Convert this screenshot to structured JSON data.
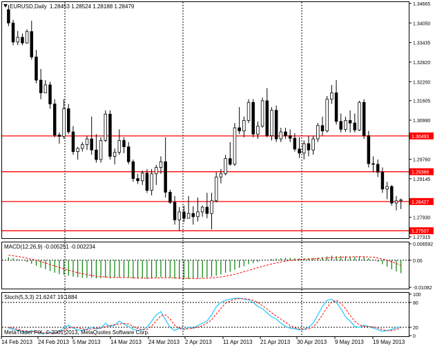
{
  "header": {
    "symbol": "EURUSD,Daily",
    "ohlc": "1.28453 1.28524 1.28188 1.28479"
  },
  "colors": {
    "background": "#ffffff",
    "frame": "#000000",
    "grid": "#000000",
    "level_line": "#ff0000",
    "level_label_bg": "#ff0000",
    "level_label_text": "#ffffff",
    "macd_hist": "#008000",
    "macd_signal": "#ff0000",
    "stoch_main": "#1ec8ff",
    "stoch_signal": "#ff0000"
  },
  "chart_data": [
    {
      "type": "candlestick",
      "title": "EURUSD,Daily",
      "x_tick_labels": [
        "14 Feb 2013",
        "24 Feb 2013",
        "5 Mar 2013",
        "14 Mar 2013",
        "24 Mar 2013",
        "2 Apr 2013",
        "11 Apr 2013",
        "21 Apr 2013",
        "30 Apr 2013",
        "9 May 2013",
        "19 May 2013"
      ],
      "y_tick_labels": [
        "1.34665",
        "1.34050",
        "1.33435",
        "1.32820",
        "1.32200",
        "1.31605",
        "1.30990",
        "1.30493",
        "1.29760",
        "1.29366",
        "1.29145",
        "1.28427",
        "1.27930",
        "1.27507",
        "1.27315"
      ],
      "ylim": [
        1.27315,
        1.34665
      ],
      "horizontal_levels": [
        "1.30493",
        "1.29366",
        "1.28427",
        "1.27507"
      ],
      "grid": "dotted",
      "candles": [
        [
          1.3447,
          1.3462,
          1.3395,
          1.3405
        ],
        [
          1.3405,
          1.3415,
          1.3335,
          1.3345
        ],
        [
          1.3345,
          1.338,
          1.3335,
          1.336
        ],
        [
          1.336,
          1.3372,
          1.3335,
          1.3342
        ],
        [
          1.3342,
          1.3385,
          1.334,
          1.3378
        ],
        [
          1.3378,
          1.3412,
          1.329,
          1.3298
        ],
        [
          1.3298,
          1.332,
          1.3215,
          1.3225
        ],
        [
          1.3225,
          1.326,
          1.3165,
          1.3185
        ],
        [
          1.3185,
          1.3225,
          1.319,
          1.321
        ],
        [
          1.321,
          1.322,
          1.3135,
          1.315
        ],
        [
          1.315,
          1.3165,
          1.3045,
          1.3052
        ],
        [
          1.3052,
          1.306,
          1.3025,
          1.3048
        ],
        [
          1.3048,
          1.3165,
          1.304,
          1.3135
        ],
        [
          1.3135,
          1.315,
          1.3055,
          1.3062
        ],
        [
          1.3062,
          1.308,
          1.299,
          1.3
        ],
        [
          1.3,
          1.3015,
          1.2975,
          1.301
        ],
        [
          1.301,
          1.303,
          1.3,
          1.3022
        ],
        [
          1.3022,
          1.305,
          1.3005,
          1.304
        ],
        [
          1.304,
          1.311,
          1.299,
          1.3005
        ],
        [
          1.3005,
          1.3055,
          1.2965,
          1.2975
        ],
        [
          1.2975,
          1.3045,
          1.2965,
          1.3035
        ],
        [
          1.3035,
          1.313,
          1.303,
          1.3118
        ],
        [
          1.3118,
          1.313,
          1.2975,
          1.2985
        ],
        [
          1.2985,
          1.301,
          1.296,
          1.2998
        ],
        [
          1.2998,
          1.307,
          1.299,
          1.3035
        ],
        [
          1.3035,
          1.3045,
          1.2995,
          1.3015
        ],
        [
          1.3015,
          1.303,
          1.296,
          1.2968
        ],
        [
          1.2968,
          1.2975,
          1.2905,
          1.2915
        ],
        [
          1.2915,
          1.293,
          1.2898,
          1.2908
        ],
        [
          1.2908,
          1.294,
          1.2895,
          1.2932
        ],
        [
          1.2932,
          1.2945,
          1.287,
          1.2878
        ],
        [
          1.2878,
          1.2945,
          1.2862,
          1.293
        ],
        [
          1.293,
          1.2958,
          1.2895,
          1.295
        ],
        [
          1.295,
          1.2985,
          1.293,
          1.2968
        ],
        [
          1.2968,
          1.3045,
          1.2855,
          1.2872
        ],
        [
          1.2872,
          1.288,
          1.2835,
          1.284
        ],
        [
          1.284,
          1.286,
          1.277,
          1.2785
        ],
        [
          1.2785,
          1.2825,
          1.275,
          1.281
        ],
        [
          1.281,
          1.283,
          1.2778,
          1.279
        ],
        [
          1.279,
          1.286,
          1.279,
          1.2805
        ],
        [
          1.2805,
          1.2828,
          1.277,
          1.2795
        ],
        [
          1.2795,
          1.2855,
          1.278,
          1.281
        ],
        [
          1.281,
          1.283,
          1.2795,
          1.2825
        ],
        [
          1.2825,
          1.287,
          1.279,
          1.2805
        ],
        [
          1.2805,
          1.287,
          1.2755,
          1.2845
        ],
        [
          1.2845,
          1.2935,
          1.284,
          1.292
        ],
        [
          1.292,
          1.2945,
          1.29,
          1.293
        ],
        [
          1.293,
          1.299,
          1.2925,
          1.2978
        ],
        [
          1.2978,
          1.303,
          1.2955,
          1.296
        ],
        [
          1.296,
          1.309,
          1.2955,
          1.3075
        ],
        [
          1.3075,
          1.314,
          1.3055,
          1.3065
        ],
        [
          1.3065,
          1.311,
          1.3045,
          1.3098
        ],
        [
          1.3098,
          1.3165,
          1.309,
          1.3155
        ],
        [
          1.3155,
          1.3165,
          1.3045,
          1.3055
        ],
        [
          1.3055,
          1.3095,
          1.304,
          1.308
        ],
        [
          1.308,
          1.317,
          1.3075,
          1.316
        ],
        [
          1.316,
          1.32,
          1.3045,
          1.305
        ],
        [
          1.305,
          1.314,
          1.3035,
          1.313
        ],
        [
          1.313,
          1.3145,
          1.303,
          1.304
        ],
        [
          1.304,
          1.3075,
          1.303,
          1.3062
        ],
        [
          1.3062,
          1.3075,
          1.304,
          1.305
        ],
        [
          1.305,
          1.307,
          1.303,
          1.3042
        ],
        [
          1.3042,
          1.3058,
          1.3,
          1.3008
        ],
        [
          1.3008,
          1.3045,
          1.298,
          1.2995
        ],
        [
          1.2995,
          1.3035,
          1.2975,
          1.3025
        ],
        [
          1.3025,
          1.305,
          1.2985,
          1.3005
        ],
        [
          1.3005,
          1.305,
          1.299,
          1.304
        ],
        [
          1.304,
          1.309,
          1.303,
          1.3082
        ],
        [
          1.3082,
          1.311,
          1.305,
          1.3065
        ],
        [
          1.3065,
          1.3175,
          1.306,
          1.3165
        ],
        [
          1.3165,
          1.321,
          1.315,
          1.3185
        ],
        [
          1.3185,
          1.3225,
          1.3085,
          1.3095
        ],
        [
          1.3095,
          1.312,
          1.306,
          1.307
        ],
        [
          1.307,
          1.311,
          1.3062,
          1.3098
        ],
        [
          1.3098,
          1.313,
          1.306,
          1.309
        ],
        [
          1.309,
          1.312,
          1.306,
          1.3068
        ],
        [
          1.3068,
          1.316,
          1.3065,
          1.3155
        ],
        [
          1.3155,
          1.3165,
          1.304,
          1.305
        ],
        [
          1.305,
          1.3065,
          1.295,
          1.2962
        ],
        [
          1.2962,
          1.2985,
          1.2935,
          1.296
        ],
        [
          1.296,
          1.2975,
          1.292,
          1.2935
        ],
        [
          1.2935,
          1.295,
          1.287,
          1.2882
        ],
        [
          1.2882,
          1.2905,
          1.285,
          1.289
        ],
        [
          1.289,
          1.2895,
          1.283,
          1.2838
        ],
        [
          1.2838,
          1.286,
          1.2815,
          1.2845
        ],
        [
          1.2845,
          1.2852,
          1.2819,
          1.2848
        ]
      ]
    },
    {
      "type": "bar",
      "title": "MACD(12,26,9) -0.005251 -0.002234",
      "series_names": [
        "MACD",
        "Signal"
      ],
      "y_tick_labels": [
        "0.006592",
        "0.00",
        "-0.01082"
      ],
      "ylim": [
        -0.01082,
        0.006592
      ],
      "macd": [
        0.0012,
        0.0008,
        0.0003,
        -0.0002,
        -0.0008,
        -0.0015,
        -0.0022,
        -0.003,
        -0.0036,
        -0.0043,
        -0.005,
        -0.0056,
        -0.0058,
        -0.0062,
        -0.0066,
        -0.0068,
        -0.007,
        -0.007,
        -0.0071,
        -0.0073,
        -0.0072,
        -0.007,
        -0.0072,
        -0.0071,
        -0.007,
        -0.007,
        -0.0071,
        -0.0073,
        -0.0074,
        -0.0073,
        -0.0074,
        -0.0072,
        -0.007,
        -0.0068,
        -0.0069,
        -0.0071,
        -0.0074,
        -0.0075,
        -0.0076,
        -0.0075,
        -0.0074,
        -0.0073,
        -0.0071,
        -0.0069,
        -0.0067,
        -0.0062,
        -0.0057,
        -0.005,
        -0.0046,
        -0.0038,
        -0.003,
        -0.0024,
        -0.0016,
        -0.0012,
        -0.0007,
        -0.0001,
        0.0,
        0.0005,
        0.0006,
        0.0008,
        0.0009,
        0.0009,
        0.0008,
        0.0007,
        0.0008,
        0.0008,
        0.0009,
        0.0011,
        0.0012,
        0.0015,
        0.0018,
        0.0017,
        0.0016,
        0.0016,
        0.0015,
        0.0014,
        0.0016,
        0.0014,
        0.0008,
        0.0003,
        -0.0006,
        -0.0016,
        -0.0026,
        -0.0036,
        -0.0045,
        -0.0052
      ],
      "signal": [
        0.002,
        0.0018,
        0.0015,
        0.0012,
        0.0008,
        0.0004,
        0.0,
        -0.0006,
        -0.0011,
        -0.0017,
        -0.0023,
        -0.0029,
        -0.0035,
        -0.004,
        -0.0045,
        -0.005,
        -0.0054,
        -0.0058,
        -0.0061,
        -0.0064,
        -0.0066,
        -0.0067,
        -0.0068,
        -0.0069,
        -0.0069,
        -0.0069,
        -0.007,
        -0.007,
        -0.0071,
        -0.0072,
        -0.0072,
        -0.0072,
        -0.0071,
        -0.0071,
        -0.007,
        -0.007,
        -0.0071,
        -0.0072,
        -0.0072,
        -0.0073,
        -0.0073,
        -0.0073,
        -0.0073,
        -0.0072,
        -0.0071,
        -0.0069,
        -0.0067,
        -0.0064,
        -0.006,
        -0.0056,
        -0.0051,
        -0.0046,
        -0.0041,
        -0.0035,
        -0.003,
        -0.0025,
        -0.002,
        -0.0015,
        -0.0011,
        -0.0007,
        -0.0004,
        -0.0001,
        0.0001,
        0.0003,
        0.0004,
        0.0005,
        0.0006,
        0.0007,
        0.0008,
        0.0009,
        0.001,
        0.0011,
        0.0012,
        0.0013,
        0.0013,
        0.0014,
        0.0014,
        0.0014,
        0.0013,
        0.0012,
        0.0009,
        0.0005,
        0.0,
        -0.0006,
        -0.0013,
        -0.0022
      ]
    },
    {
      "type": "line",
      "title": "Stoch(5,3,3) 21.6247 19.1884",
      "series_names": [
        "Main",
        "Signal"
      ],
      "y_tick_labels": [
        "100",
        "80",
        "20",
        "0"
      ],
      "ylim": [
        0,
        100
      ],
      "levels": [
        80,
        20
      ],
      "main": [
        18,
        15,
        12,
        10,
        8,
        12,
        8,
        6,
        5,
        8,
        6,
        10,
        18,
        25,
        18,
        14,
        12,
        16,
        20,
        16,
        18,
        30,
        22,
        25,
        35,
        28,
        22,
        15,
        12,
        14,
        20,
        35,
        50,
        58,
        38,
        20,
        12,
        18,
        15,
        20,
        18,
        24,
        30,
        35,
        50,
        70,
        80,
        85,
        88,
        90,
        90,
        88,
        86,
        80,
        70,
        65,
        55,
        45,
        40,
        30,
        22,
        18,
        16,
        14,
        15,
        20,
        30,
        50,
        70,
        85,
        88,
        80,
        65,
        45,
        35,
        22,
        20,
        25,
        22,
        18,
        14,
        10,
        12,
        15,
        18,
        21.6247
      ],
      "signal": [
        20,
        18,
        15,
        12,
        10,
        10,
        9,
        8,
        6,
        6,
        6,
        8,
        12,
        18,
        20,
        19,
        16,
        14,
        16,
        18,
        18,
        22,
        24,
        26,
        28,
        29,
        28,
        22,
        17,
        14,
        15,
        23,
        35,
        48,
        50,
        40,
        25,
        17,
        15,
        17,
        18,
        20,
        24,
        30,
        38,
        52,
        66,
        78,
        84,
        88,
        89,
        89,
        88,
        85,
        80,
        72,
        64,
        55,
        47,
        40,
        32,
        24,
        19,
        16,
        15,
        16,
        21,
        33,
        50,
        68,
        81,
        85,
        78,
        65,
        48,
        35,
        26,
        22,
        22,
        21,
        18,
        14,
        12,
        12,
        14,
        19.1884
      ]
    }
  ],
  "footer": {
    "copyright": "MetaTrader FIX, © 2001-2013, MetaQuotes Software Corp."
  }
}
